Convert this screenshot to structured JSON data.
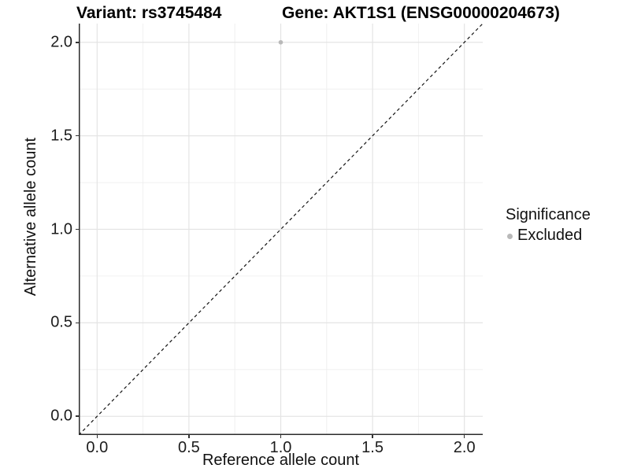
{
  "chart_data": {
    "type": "scatter",
    "title_left": "Variant: rs3745484",
    "title_right": "Gene: AKT1S1 (ENSG00000204673)",
    "xlabel": "Reference allele count",
    "ylabel": "Alternative allele count",
    "xlim": [
      -0.1,
      2.1
    ],
    "ylim": [
      -0.1,
      2.1
    ],
    "xticks": {
      "values": [
        0,
        0.5,
        1,
        1.5,
        2
      ],
      "labels": [
        "0.0",
        "0.5",
        "1.0",
        "1.5",
        "2.0"
      ]
    },
    "yticks": {
      "values": [
        0,
        0.5,
        1,
        1.5,
        2
      ],
      "labels": [
        "0.0",
        "0.5",
        "1.0",
        "1.5",
        "2.0"
      ]
    },
    "xminor": [
      0.25,
      0.75,
      1.25,
      1.75
    ],
    "yminor": [
      0.25,
      0.75,
      1.25,
      1.75
    ],
    "grid": {
      "major_color": "#e4e4e4",
      "minor_color": "#f0f0f0",
      "background": "#ffffff"
    },
    "axis_line_color": "#2b2b2b",
    "reference_line": {
      "slope": 1,
      "intercept": 0,
      "style": "dashed",
      "color": "#141414"
    },
    "series": [
      {
        "name": "Excluded",
        "color": "#b9b9b9",
        "points": [
          {
            "x": 1.0,
            "y": 2.0
          }
        ]
      }
    ],
    "legend": {
      "title": "Significance",
      "position": "right",
      "entries": [
        {
          "label": "Excluded",
          "color": "#b9b9b9"
        }
      ]
    }
  }
}
